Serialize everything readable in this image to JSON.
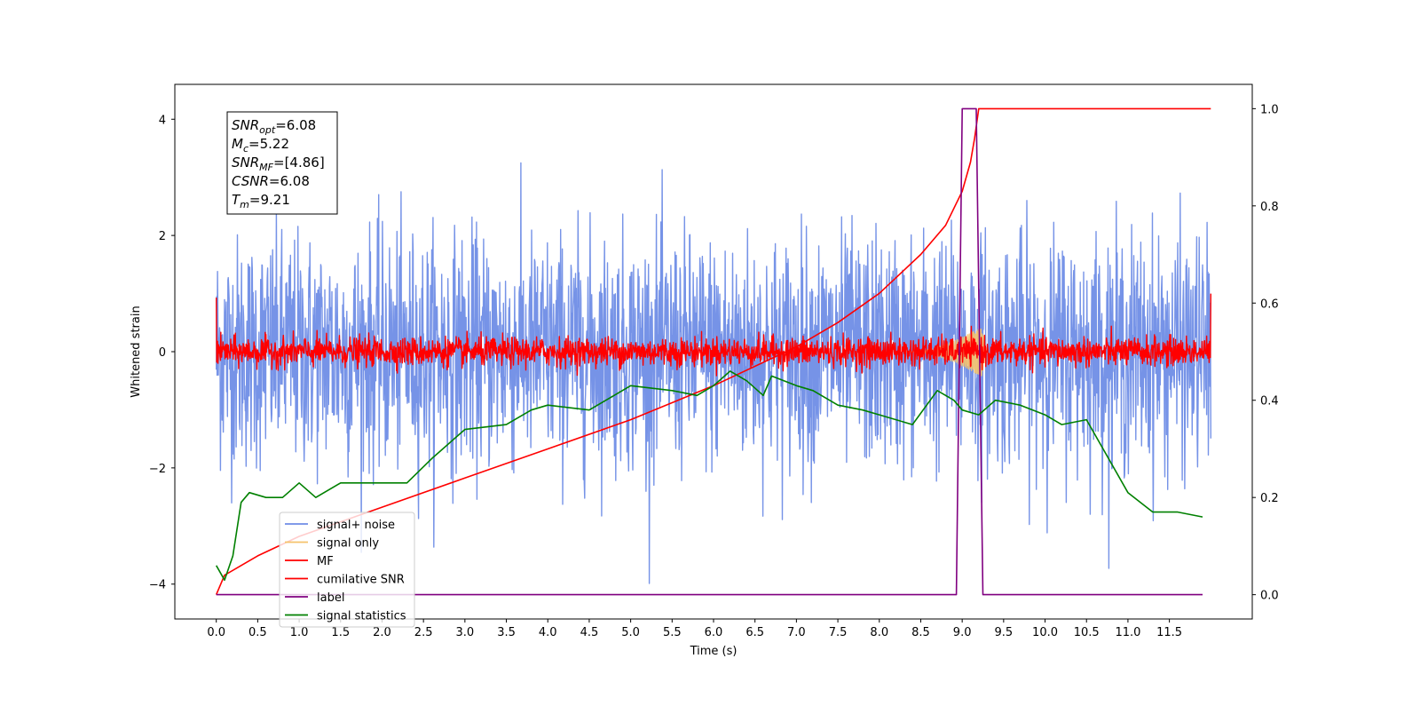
{
  "chart_data": {
    "type": "line",
    "xlabel": "Time (s)",
    "ylabel": "Whitened strain",
    "xlim": [
      -0.5,
      12.5
    ],
    "ylim": [
      -4.6,
      4.6
    ],
    "y2lim": [
      -0.05,
      1.05
    ],
    "xticks": [
      "0.0",
      "0.5",
      "1.0",
      "1.5",
      "2.0",
      "2.5",
      "3.0",
      "3.5",
      "4.0",
      "4.5",
      "5.0",
      "5.5",
      "6.0",
      "6.5",
      "7.0",
      "7.5",
      "8.0",
      "8.5",
      "9.0",
      "9.5",
      "10.0",
      "10.5",
      "11.0",
      "11.5"
    ],
    "yticks": [
      "−4",
      "−2",
      "0",
      "2",
      "4"
    ],
    "y2ticks": [
      "0.0",
      "0.2",
      "0.4",
      "0.6",
      "0.8",
      "1.0"
    ],
    "grid": false,
    "legend_position": "lower-left",
    "annotation": {
      "lines": [
        {
          "base": "SNR",
          "sub": "opt",
          "value": "=6.08"
        },
        {
          "base": "M",
          "sub": "c",
          "value": "=5.22"
        },
        {
          "base": "SNR",
          "sub": "MF",
          "value": "=[4.86]"
        },
        {
          "base": "CSNR",
          "sub": "",
          "value": "=6.08"
        },
        {
          "base": "T",
          "sub": "m",
          "value": "=9.21"
        }
      ]
    },
    "series": [
      {
        "name": "signal+ noise",
        "color": "#6f8de6",
        "axis": "left",
        "style": "noise",
        "x_range": [
          0,
          12
        ],
        "amplitude_typical": 1.6,
        "amplitude_max": 4.1
      },
      {
        "name": "signal only",
        "color": "#f5c36b",
        "axis": "left",
        "style": "chirp",
        "x_range": [
          8.3,
          9.3
        ],
        "amplitude_max": 0.5
      },
      {
        "name": "MF",
        "color": "#ff0000",
        "axis": "left",
        "style": "noise",
        "x_range": [
          0,
          12
        ],
        "amplitude_typical": 0.35,
        "amplitude_max": 1.0
      },
      {
        "name": "cumilative SNR",
        "color": "#ff0000",
        "axis": "right",
        "x": [
          0,
          0.1,
          0.5,
          1.0,
          2.0,
          3.0,
          4.0,
          5.0,
          6.0,
          7.0,
          7.5,
          8.0,
          8.5,
          8.8,
          9.0,
          9.1,
          9.15,
          9.2,
          9.3,
          12.0
        ],
        "y": [
          0.0,
          0.04,
          0.08,
          0.12,
          0.18,
          0.24,
          0.3,
          0.36,
          0.43,
          0.51,
          0.56,
          0.62,
          0.7,
          0.76,
          0.83,
          0.89,
          0.94,
          1.0,
          1.0,
          1.0
        ]
      },
      {
        "name": "label",
        "color": "#800080",
        "axis": "right",
        "x": [
          0,
          8.93,
          9.0,
          9.17,
          9.25,
          11.9
        ],
        "y": [
          0,
          0,
          1,
          1,
          0,
          0
        ]
      },
      {
        "name": "signal statistics",
        "color": "#008000",
        "axis": "right",
        "x": [
          0.0,
          0.1,
          0.2,
          0.3,
          0.4,
          0.6,
          0.8,
          1.0,
          1.2,
          1.5,
          2.0,
          2.3,
          2.6,
          3.0,
          3.5,
          3.8,
          4.0,
          4.5,
          4.8,
          5.0,
          5.5,
          5.8,
          6.0,
          6.2,
          6.4,
          6.6,
          6.7,
          7.0,
          7.2,
          7.5,
          7.8,
          8.0,
          8.4,
          8.7,
          8.9,
          9.0,
          9.2,
          9.4,
          9.7,
          10.0,
          10.2,
          10.5,
          11.0,
          11.3,
          11.6,
          11.9
        ],
        "y": [
          0.06,
          0.03,
          0.08,
          0.19,
          0.21,
          0.2,
          0.2,
          0.23,
          0.2,
          0.23,
          0.23,
          0.23,
          0.28,
          0.34,
          0.35,
          0.38,
          0.39,
          0.38,
          0.41,
          0.43,
          0.42,
          0.41,
          0.43,
          0.46,
          0.44,
          0.41,
          0.45,
          0.43,
          0.42,
          0.39,
          0.38,
          0.37,
          0.35,
          0.42,
          0.4,
          0.38,
          0.37,
          0.4,
          0.39,
          0.37,
          0.35,
          0.36,
          0.21,
          0.17,
          0.17,
          0.16
        ]
      }
    ]
  }
}
